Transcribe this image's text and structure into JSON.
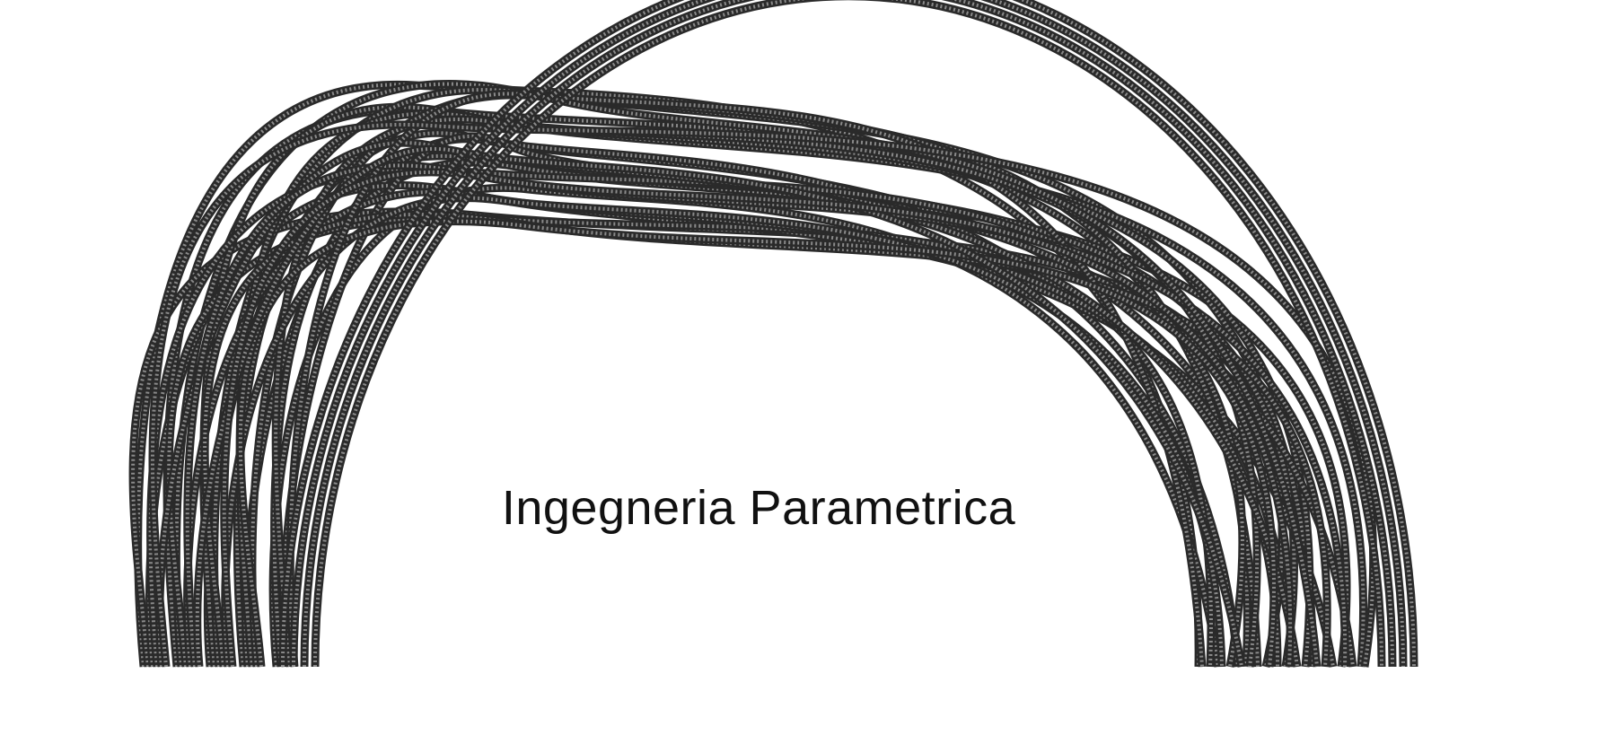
{
  "caption": "Ingegneria Parametrica",
  "colors": {
    "background": "#ffffff",
    "tube": "#2a2a2a",
    "tube_fill": "#8a8a8a",
    "text": "#111111"
  }
}
